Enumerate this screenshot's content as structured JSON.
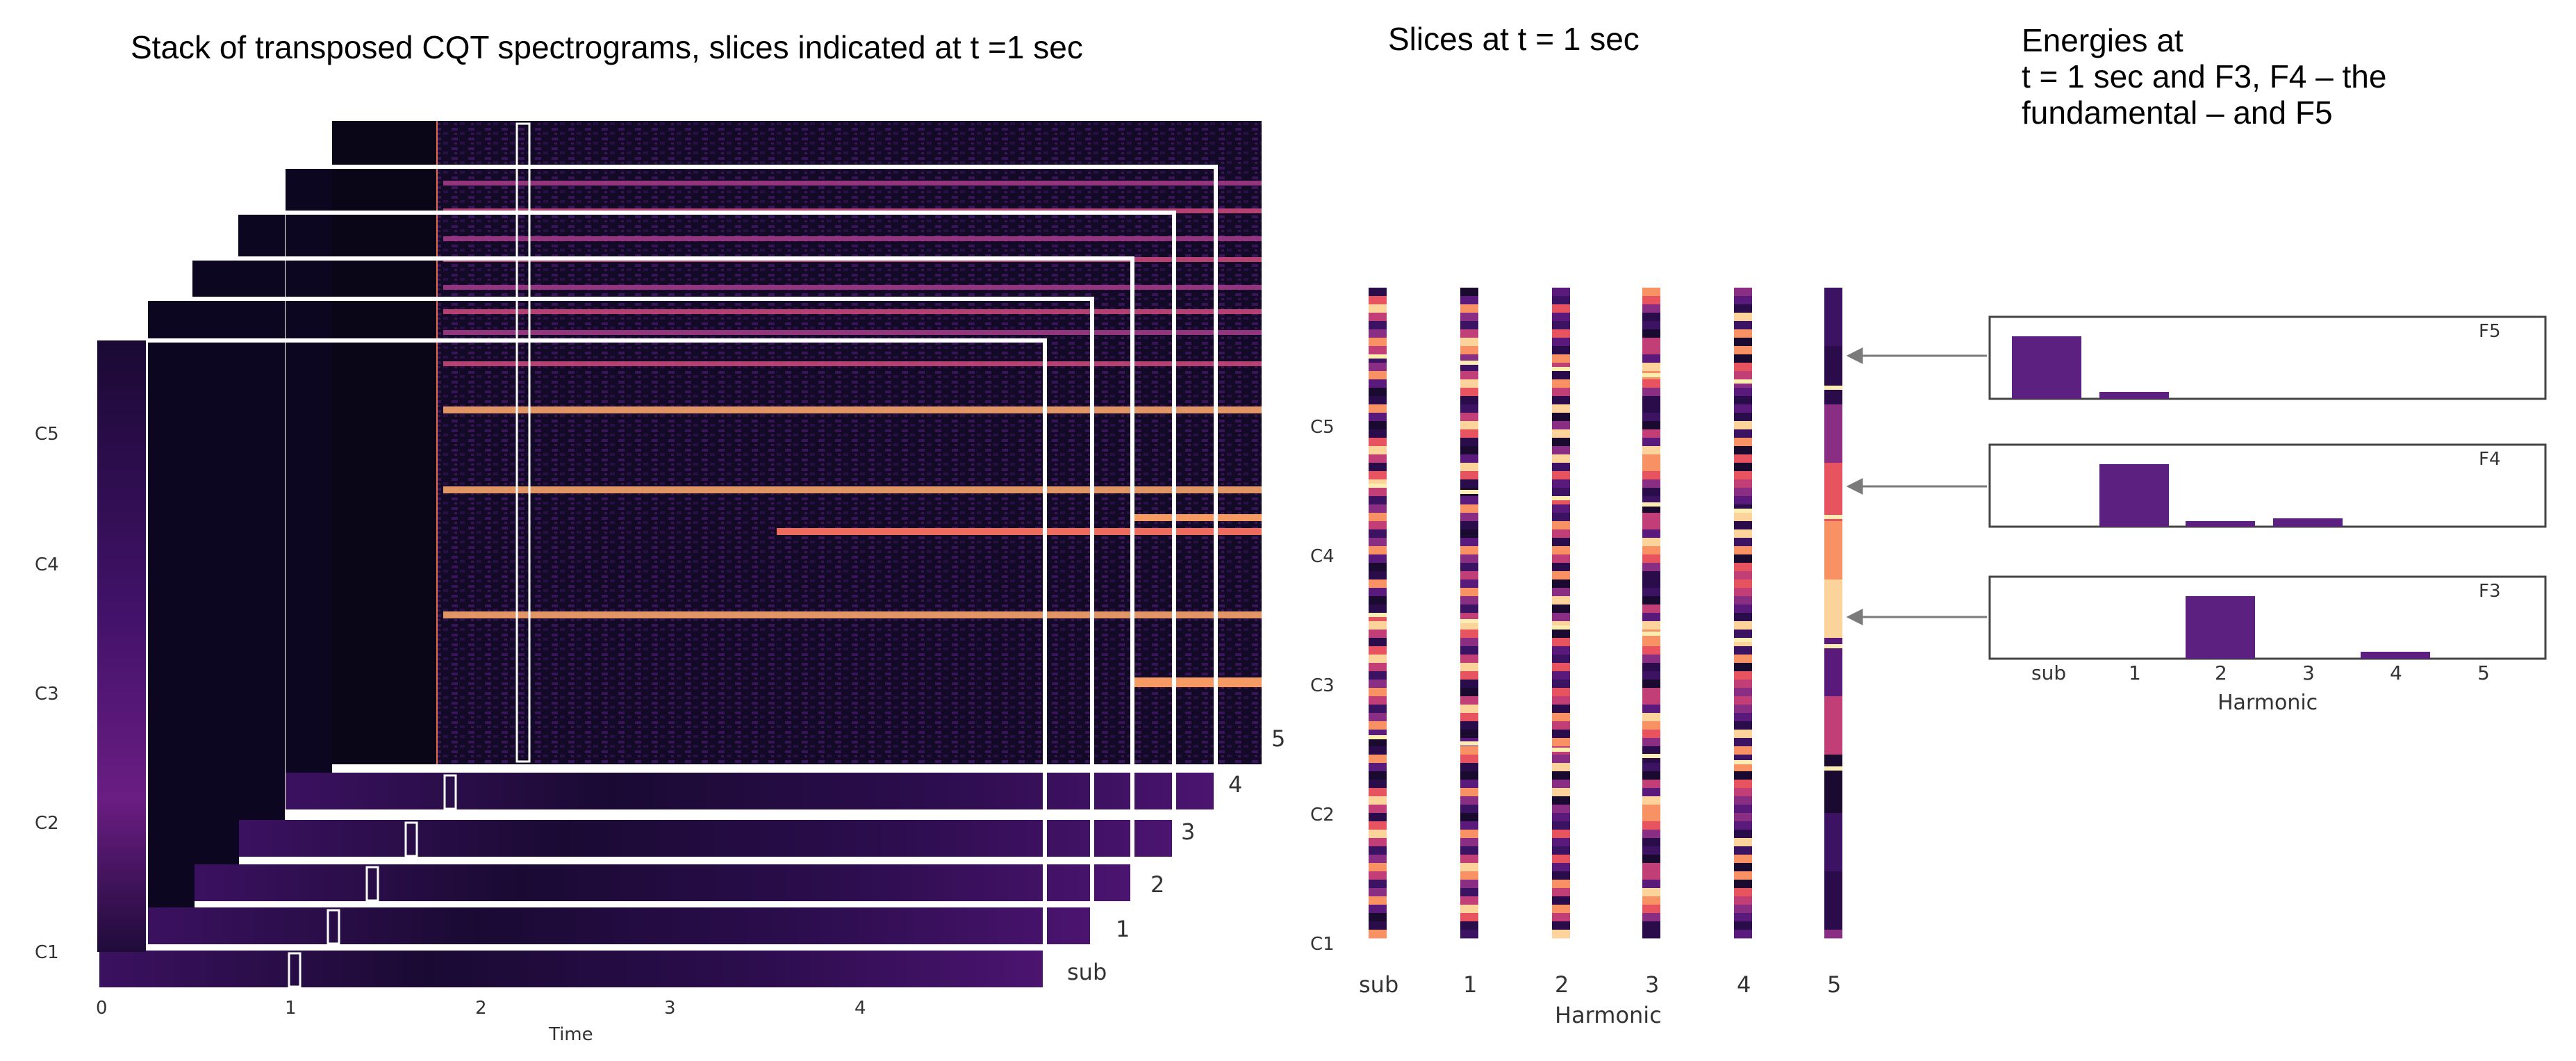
{
  "titles": {
    "stack": "Stack of transposed CQT spectrograms, slices indicated at t =1 sec",
    "slices": "Slices at t = 1 sec",
    "energies": [
      "Energies at",
      "t = 1 sec and F3, F4 – the",
      "fundamental – and F5"
    ]
  },
  "stack": {
    "layer_labels": [
      "sub",
      "1",
      "2",
      "3",
      "4",
      "5"
    ],
    "y_ticks": [
      "C1",
      "C2",
      "C3",
      "C4",
      "C5"
    ],
    "x_ticks": [
      "0",
      "1",
      "2",
      "3",
      "4"
    ],
    "x_label": "Time"
  },
  "slices": {
    "y_ticks": [
      "C1",
      "C2",
      "C3",
      "C4",
      "C5"
    ],
    "x_ticks": [
      "sub",
      "1",
      "2",
      "3",
      "4",
      "5"
    ],
    "x_label": "Harmonic"
  },
  "energies": {
    "x_ticks": [
      "sub",
      "1",
      "2",
      "3",
      "4",
      "5"
    ],
    "x_label": "Harmonic",
    "bar_color": "#5c2180",
    "panels": [
      {
        "label": "F5",
        "values": [
          0.45,
          0.05,
          0,
          0,
          0,
          0
        ]
      },
      {
        "label": "F4",
        "values": [
          0,
          0.45,
          0.04,
          0.06,
          0,
          0
        ]
      },
      {
        "label": "F3",
        "values": [
          0,
          0,
          0.45,
          0,
          0.05,
          0
        ]
      }
    ]
  },
  "colors": {
    "magma_dark": "#0a0418",
    "magma_mid": "#6a1d82",
    "magma_bright": "#fd9a6a",
    "magma_peak": "#fcfdbf",
    "arrow": "#7a7a7a"
  }
}
